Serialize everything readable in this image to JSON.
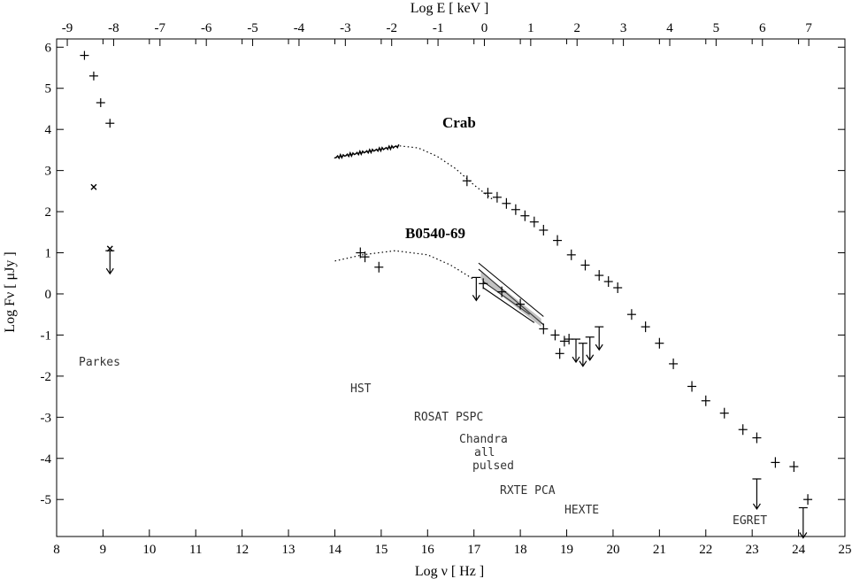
{
  "chart_data": {
    "type": "scatter",
    "title": "",
    "xlabel": "Log ν [ Hz ]",
    "ylabel": "Log Fν [ μJy ]",
    "x2label": "Log E [ keV ]",
    "xlim": [
      8,
      25
    ],
    "ylim": [
      -5.9,
      6.2
    ],
    "x2lim": [
      -9.23,
      7.78
    ],
    "xticks": [
      "8",
      "9",
      "10",
      "11",
      "12",
      "13",
      "14",
      "15",
      "16",
      "17",
      "18",
      "19",
      "20",
      "21",
      "22",
      "23",
      "24",
      "25"
    ],
    "yticks": [
      "6",
      "5",
      "4",
      "3",
      "2",
      "1",
      "0",
      "-1",
      "-2",
      "-3",
      "-4",
      "-5"
    ],
    "x2ticks": [
      "-9",
      "-8",
      "-7",
      "-6",
      "-5",
      "-4",
      "-3",
      "-2",
      "-1",
      "0",
      "1",
      "2",
      "3",
      "4",
      "5",
      "6",
      "7"
    ],
    "grid": false,
    "series": [
      {
        "name": "Crab",
        "points": [
          {
            "x": 16.85,
            "y": 2.75
          },
          {
            "x": 17.3,
            "y": 2.45
          },
          {
            "x": 17.5,
            "y": 2.35
          },
          {
            "x": 17.7,
            "y": 2.2
          },
          {
            "x": 17.9,
            "y": 2.05
          },
          {
            "x": 18.1,
            "y": 1.9
          },
          {
            "x": 18.3,
            "y": 1.75
          },
          {
            "x": 18.5,
            "y": 1.55
          },
          {
            "x": 18.8,
            "y": 1.3
          },
          {
            "x": 19.1,
            "y": 0.95
          },
          {
            "x": 19.4,
            "y": 0.7
          },
          {
            "x": 19.7,
            "y": 0.45
          },
          {
            "x": 19.9,
            "y": 0.3
          },
          {
            "x": 20.1,
            "y": 0.15
          },
          {
            "x": 20.4,
            "y": -0.5
          },
          {
            "x": 20.7,
            "y": -0.8
          },
          {
            "x": 21.0,
            "y": -1.2
          },
          {
            "x": 21.3,
            "y": -1.7
          },
          {
            "x": 21.7,
            "y": -2.25
          },
          {
            "x": 22.0,
            "y": -2.6
          },
          {
            "x": 22.4,
            "y": -2.9
          },
          {
            "x": 22.8,
            "y": -3.3
          },
          {
            "x": 23.1,
            "y": -3.5
          },
          {
            "x": 23.5,
            "y": -4.1
          },
          {
            "x": 23.9,
            "y": -4.2
          },
          {
            "x": 24.2,
            "y": -5.0
          }
        ],
        "curve": [
          {
            "x": 15.4,
            "y": 3.6
          },
          {
            "x": 15.8,
            "y": 3.55
          },
          {
            "x": 16.2,
            "y": 3.35
          },
          {
            "x": 16.6,
            "y": 3.05
          },
          {
            "x": 17.0,
            "y": 2.65
          },
          {
            "x": 17.4,
            "y": 2.3
          }
        ]
      },
      {
        "name": "B0540-69",
        "points": [
          {
            "x": 14.55,
            "y": 1.0
          },
          {
            "x": 14.65,
            "y": 0.9
          },
          {
            "x": 14.95,
            "y": 0.65
          },
          {
            "x": 17.2,
            "y": 0.25
          },
          {
            "x": 17.6,
            "y": 0.05
          },
          {
            "x": 18.0,
            "y": -0.25
          },
          {
            "x": 18.5,
            "y": -0.85
          },
          {
            "x": 18.75,
            "y": -1.0
          },
          {
            "x": 18.85,
            "y": -1.45
          },
          {
            "x": 18.95,
            "y": -1.15
          },
          {
            "x": 19.05,
            "y": -1.1
          }
        ],
        "upper_limits": [
          {
            "x": 17.05,
            "y": 0.4
          },
          {
            "x": 19.2,
            "y": -1.1
          },
          {
            "x": 19.35,
            "y": -1.2
          },
          {
            "x": 19.5,
            "y": -1.05
          },
          {
            "x": 19.7,
            "y": -0.8
          }
        ],
        "curve": [
          {
            "x": 14.0,
            "y": 0.8
          },
          {
            "x": 14.6,
            "y": 0.95
          },
          {
            "x": 15.3,
            "y": 1.05
          },
          {
            "x": 16.0,
            "y": 0.95
          },
          {
            "x": 16.5,
            "y": 0.7
          },
          {
            "x": 17.0,
            "y": 0.35
          }
        ]
      },
      {
        "name": "Parkes",
        "points": [
          {
            "x": 8.6,
            "y": 5.8
          },
          {
            "x": 8.8,
            "y": 5.3
          },
          {
            "x": 8.95,
            "y": 4.65
          },
          {
            "x": 9.15,
            "y": 4.15
          }
        ],
        "crosses": [
          {
            "x": 8.8,
            "y": 2.6
          },
          {
            "x": 9.15,
            "y": 1.1
          }
        ],
        "upper_limits": [
          {
            "x": 9.15,
            "y": 1.05
          }
        ]
      }
    ],
    "egret_upper_limits": [
      {
        "x": 23.1,
        "y": -4.5
      },
      {
        "x": 24.1,
        "y": -5.2
      }
    ],
    "labels": {
      "crab": "Crab",
      "b0540": "B0540-69",
      "parkes": "Parkes",
      "hst": "HST",
      "rosat": "ROSAT PSPC",
      "chandra": "Chandra",
      "chandra2": "all",
      "chandra3": "pulsed",
      "rxte": "RXTE PCA",
      "hexte": "HEXTE",
      "egret": "EGRET"
    }
  }
}
